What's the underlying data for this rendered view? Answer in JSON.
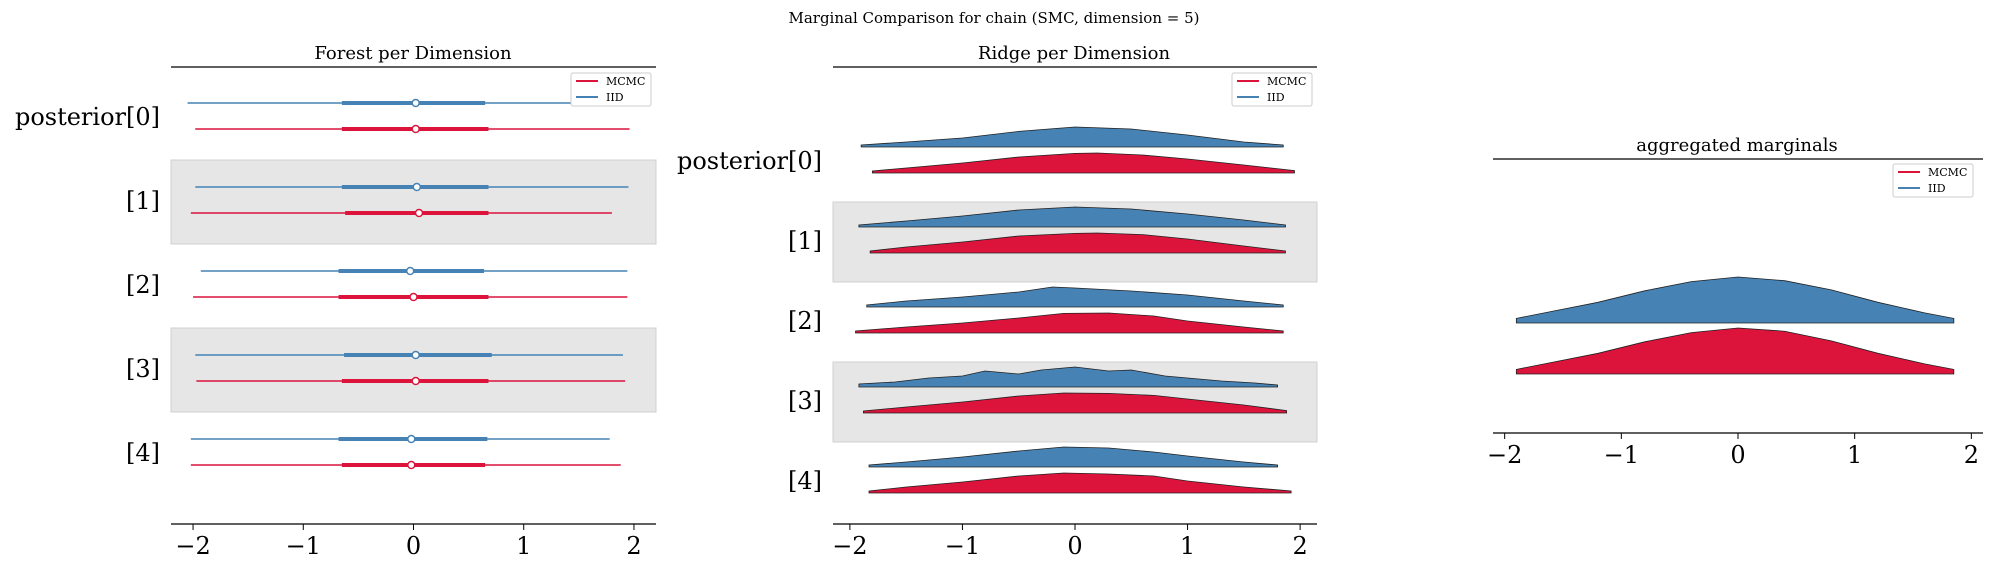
{
  "suptitle": "Marginal Comparison for chain (SMC, dimension = 5)",
  "legend": {
    "mcmc_label": "MCMC",
    "iid_label": "IID",
    "mcmc_color": "#dc143c",
    "iid_color": "#4682b4"
  },
  "chart_data": [
    {
      "type": "forest",
      "title": "Forest per Dimension",
      "row_labels": [
        "posterior[0]",
        "[1]",
        "[2]",
        "[3]",
        "[4]"
      ],
      "xlim": [
        -2.2,
        2.2
      ],
      "xticks": [
        -2,
        -1,
        0,
        1,
        2
      ],
      "tick_labels": [
        "−2",
        "−1",
        "0",
        "1",
        "2"
      ],
      "legend_position": "top-right",
      "series": [
        {
          "name": "IID",
          "rows": [
            {
              "lo": -2.05,
              "q1": -0.65,
              "mid": 0.02,
              "q3": 0.65,
              "hi": 1.88
            },
            {
              "lo": -1.98,
              "q1": -0.65,
              "mid": 0.03,
              "q3": 0.68,
              "hi": 1.95
            },
            {
              "lo": -1.93,
              "q1": -0.68,
              "mid": -0.03,
              "q3": 0.64,
              "hi": 1.94
            },
            {
              "lo": -1.98,
              "q1": -0.63,
              "mid": 0.02,
              "q3": 0.71,
              "hi": 1.9
            },
            {
              "lo": -2.02,
              "q1": -0.68,
              "mid": -0.02,
              "q3": 0.67,
              "hi": 1.78
            }
          ]
        },
        {
          "name": "MCMC",
          "rows": [
            {
              "lo": -1.98,
              "q1": -0.65,
              "mid": 0.02,
              "q3": 0.68,
              "hi": 1.96
            },
            {
              "lo": -2.02,
              "q1": -0.62,
              "mid": 0.05,
              "q3": 0.68,
              "hi": 1.8
            },
            {
              "lo": -2.0,
              "q1": -0.68,
              "mid": 0.0,
              "q3": 0.68,
              "hi": 1.94
            },
            {
              "lo": -1.97,
              "q1": -0.65,
              "mid": 0.02,
              "q3": 0.68,
              "hi": 1.92
            },
            {
              "lo": -2.02,
              "q1": -0.65,
              "mid": -0.02,
              "q3": 0.65,
              "hi": 1.88
            }
          ]
        }
      ]
    },
    {
      "type": "ridgeline",
      "title": "Ridge per Dimension",
      "row_labels": [
        "posterior[0]",
        "[1]",
        "[2]",
        "[3]",
        "[4]"
      ],
      "xlim": [
        -2.15,
        2.15
      ],
      "xticks": [
        -2,
        -1,
        0,
        1,
        2
      ],
      "tick_labels": [
        "−2",
        "−1",
        "0",
        "1",
        "2"
      ],
      "legend_position": "top-right",
      "series": [
        {
          "name": "IID",
          "rows": [
            {
              "x": [
                -1.9,
                -1.5,
                -1.0,
                -0.5,
                0.0,
                0.5,
                1.0,
                1.5,
                1.85
              ],
              "y": [
                0.1,
                0.25,
                0.45,
                0.78,
                1.0,
                0.9,
                0.6,
                0.25,
                0.1
              ]
            },
            {
              "x": [
                -1.92,
                -1.5,
                -1.0,
                -0.5,
                0.0,
                0.5,
                1.0,
                1.5,
                1.87
              ],
              "y": [
                0.1,
                0.3,
                0.55,
                0.85,
                1.0,
                0.9,
                0.65,
                0.35,
                0.1
              ]
            },
            {
              "x": [
                -1.85,
                -1.5,
                -1.0,
                -0.5,
                -0.2,
                0.0,
                0.5,
                1.0,
                1.5,
                1.85
              ],
              "y": [
                0.1,
                0.3,
                0.5,
                0.75,
                1.0,
                0.95,
                0.8,
                0.6,
                0.3,
                0.1
              ]
            },
            {
              "x": [
                -1.92,
                -1.6,
                -1.3,
                -1.0,
                -0.8,
                -0.5,
                -0.3,
                0.0,
                0.3,
                0.5,
                0.8,
                1.0,
                1.3,
                1.6,
                1.8
              ],
              "y": [
                0.15,
                0.25,
                0.45,
                0.55,
                0.8,
                0.65,
                0.85,
                1.0,
                0.8,
                0.85,
                0.55,
                0.45,
                0.3,
                0.2,
                0.1
              ]
            },
            {
              "x": [
                -1.83,
                -1.5,
                -1.0,
                -0.5,
                -0.1,
                0.3,
                0.7,
                1.0,
                1.5,
                1.8
              ],
              "y": [
                0.1,
                0.25,
                0.5,
                0.8,
                1.0,
                0.95,
                0.75,
                0.55,
                0.25,
                0.1
              ]
            }
          ]
        },
        {
          "name": "MCMC",
          "rows": [
            {
              "x": [
                -1.8,
                -1.5,
                -1.0,
                -0.5,
                0.0,
                0.2,
                0.6,
                1.0,
                1.5,
                1.95
              ],
              "y": [
                0.1,
                0.25,
                0.5,
                0.8,
                0.98,
                1.0,
                0.9,
                0.7,
                0.4,
                0.12
              ]
            },
            {
              "x": [
                -1.82,
                -1.5,
                -1.0,
                -0.5,
                0.0,
                0.2,
                0.6,
                1.0,
                1.5,
                1.87
              ],
              "y": [
                0.1,
                0.3,
                0.55,
                0.85,
                0.98,
                1.0,
                0.92,
                0.7,
                0.35,
                0.1
              ]
            },
            {
              "x": [
                -1.95,
                -1.5,
                -1.0,
                -0.5,
                -0.1,
                0.3,
                0.7,
                1.0,
                1.5,
                1.85
              ],
              "y": [
                0.1,
                0.3,
                0.5,
                0.75,
                0.98,
                1.0,
                0.85,
                0.6,
                0.3,
                0.1
              ]
            },
            {
              "x": [
                -1.88,
                -1.5,
                -1.0,
                -0.5,
                -0.1,
                0.3,
                0.7,
                1.0,
                1.5,
                1.88
              ],
              "y": [
                0.1,
                0.3,
                0.55,
                0.85,
                1.0,
                0.98,
                0.88,
                0.7,
                0.4,
                0.12
              ]
            },
            {
              "x": [
                -1.83,
                -1.5,
                -1.0,
                -0.5,
                -0.1,
                0.3,
                0.7,
                1.0,
                1.5,
                1.92
              ],
              "y": [
                0.1,
                0.3,
                0.55,
                0.85,
                1.0,
                0.95,
                0.85,
                0.6,
                0.3,
                0.1
              ]
            }
          ]
        }
      ]
    },
    {
      "type": "ridgeline",
      "title": "aggregated marginals",
      "xlim": [
        -2.1,
        2.1
      ],
      "xticks": [
        -2,
        -1,
        0,
        1,
        2
      ],
      "tick_labels": [
        "−2",
        "−1",
        "0",
        "1",
        "2"
      ],
      "legend_position": "top-right",
      "series": [
        {
          "name": "IID",
          "x": [
            -1.9,
            -1.6,
            -1.2,
            -0.8,
            -0.4,
            0.0,
            0.4,
            0.8,
            1.2,
            1.6,
            1.85
          ],
          "y": [
            0.1,
            0.25,
            0.45,
            0.7,
            0.9,
            1.0,
            0.92,
            0.72,
            0.45,
            0.22,
            0.1
          ]
        },
        {
          "name": "MCMC",
          "x": [
            -1.9,
            -1.6,
            -1.2,
            -0.8,
            -0.4,
            0.0,
            0.4,
            0.8,
            1.2,
            1.6,
            1.85
          ],
          "y": [
            0.1,
            0.25,
            0.45,
            0.7,
            0.9,
            1.0,
            0.93,
            0.72,
            0.45,
            0.22,
            0.1
          ]
        }
      ]
    }
  ]
}
